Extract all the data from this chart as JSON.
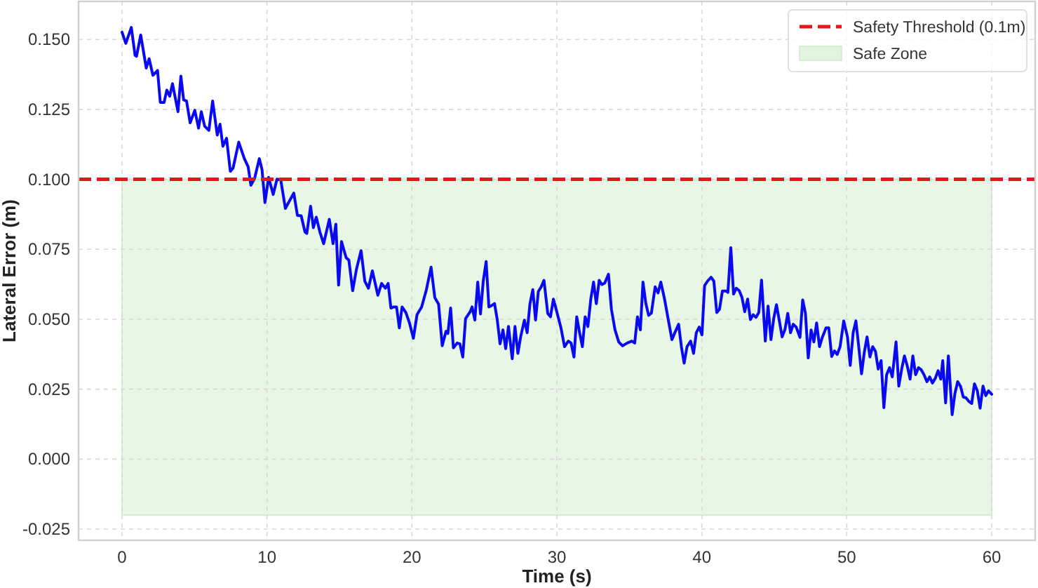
{
  "chart_data": {
    "type": "line",
    "xlabel": "Time (s)",
    "ylabel": "Lateral Error (m)",
    "xlim": [
      -3,
      63
    ],
    "ylim": [
      -0.029,
      0.1636
    ],
    "xticks": [
      0,
      10,
      20,
      30,
      40,
      50,
      60
    ],
    "yticks": [
      {
        "value": -0.025,
        "label": "-0.025"
      },
      {
        "value": 0,
        "label": "0.000"
      },
      {
        "value": 0.025,
        "label": "0.025"
      },
      {
        "value": 0.05,
        "label": "0.050"
      },
      {
        "value": 0.075,
        "label": "0.075"
      },
      {
        "value": 0.1,
        "label": "0.100"
      },
      {
        "value": 0.125,
        "label": "0.125"
      },
      {
        "value": 0.15,
        "label": "0.150"
      }
    ],
    "grid": true,
    "legend": "top right",
    "marker": "none",
    "line_style": "solid",
    "ref_lines": [
      {
        "axis": "y",
        "value": 0.1,
        "label": "Safety Threshold (0.1m)",
        "color": "#e8151b",
        "line_style": "dashed"
      }
    ],
    "bands": [
      {
        "axis": "y",
        "from": -0.02,
        "to": 0.1,
        "label": "Safe Zone",
        "color": "#d4efd0"
      }
    ],
    "series": [
      {
        "color": "#0a0af0",
        "x": [
          0,
          0.26,
          0.64,
          0.9,
          1.0,
          1.29,
          1.67,
          1.87,
          2.13,
          2.45,
          2.64,
          2.9,
          3.09,
          3.29,
          3.48,
          3.86,
          4.06,
          4.25,
          4.45,
          4.7,
          5.02,
          5.28,
          5.47,
          5.7,
          5.99,
          6.25,
          6.57,
          6.76,
          6.96,
          7.21,
          7.47,
          7.66,
          8.05,
          8.44,
          8.7,
          8.89,
          9.15,
          9.47,
          9.66,
          9.86,
          10.11,
          10.43,
          10.69,
          10.95,
          11.27,
          11.85,
          12.1,
          12.36,
          12.62,
          12.75,
          13.01,
          13.2,
          13.4,
          13.65,
          13.91,
          14.3,
          14.56,
          14.75,
          14.94,
          15.14,
          15.46,
          15.65,
          15.91,
          16.17,
          16.49,
          16.75,
          17.0,
          17.27,
          17.65,
          17.91,
          18.17,
          18.36,
          18.55,
          18.74,
          18.94,
          19.13,
          19.32,
          19.58,
          19.83,
          20.1,
          20.35,
          20.67,
          21.0,
          21.32,
          21.58,
          21.84,
          22.09,
          22.35,
          22.48,
          22.67,
          22.86,
          23.12,
          23.31,
          23.51,
          23.7,
          24.02,
          24.15,
          24.34,
          24.54,
          24.73,
          24.92,
          25.12,
          25.31,
          25.5,
          25.7,
          25.89,
          26.08,
          26.28,
          26.47,
          26.66,
          26.92,
          27.11,
          27.31,
          27.5,
          27.76,
          27.95,
          28.14,
          28.34,
          28.53,
          28.72,
          28.92,
          29.11,
          29.37,
          29.56,
          29.76,
          30.01,
          30.27,
          30.53,
          30.79,
          30.98,
          31.18,
          31.37,
          31.56,
          31.76,
          31.95,
          32.14,
          32.34,
          32.53,
          32.72,
          32.92,
          33.11,
          33.3,
          33.56,
          33.76,
          34.01,
          34.27,
          34.53,
          34.85,
          35.17,
          35.37,
          35.56,
          35.76,
          35.94,
          36.14,
          36.33,
          36.52,
          36.78,
          36.98,
          37.17,
          37.43,
          37.69,
          37.94,
          38.14,
          38.4,
          38.59,
          38.78,
          38.98,
          39.23,
          39.43,
          39.62,
          39.82,
          40.01,
          40.19,
          40.39,
          40.64,
          40.83,
          41.03,
          41.22,
          41.42,
          41.67,
          41.8,
          42.0,
          42.19,
          42.38,
          42.58,
          42.77,
          42.96,
          43.16,
          43.35,
          43.54,
          43.74,
          43.93,
          44.12,
          44.38,
          44.57,
          44.77,
          44.96,
          45.15,
          45.35,
          45.54,
          45.74,
          45.93,
          46.12,
          46.31,
          46.51,
          46.77,
          46.96,
          47.15,
          47.34,
          47.54,
          47.73,
          47.92,
          48.12,
          48.31,
          48.57,
          48.76,
          48.96,
          49.15,
          49.34,
          49.54,
          49.79,
          50.05,
          50.24,
          50.44,
          50.63,
          50.82,
          51.02,
          51.21,
          51.4,
          51.6,
          51.79,
          51.98,
          52.17,
          52.37,
          52.56,
          52.75,
          52.95,
          53.14,
          53.4,
          53.59,
          53.79,
          53.98,
          54.17,
          54.37,
          54.56,
          54.75,
          54.95,
          55.14,
          55.33,
          55.53,
          55.72,
          55.91,
          56.11,
          56.3,
          56.49,
          56.62,
          56.82,
          57.01,
          57.27,
          57.46,
          57.65,
          57.85,
          58.04,
          58.23,
          58.43,
          58.62,
          58.81,
          59.01,
          59.2,
          59.4,
          59.59,
          59.78,
          60.0
        ],
        "values": [
          0.1526,
          0.1486,
          0.1543,
          0.1443,
          0.144,
          0.1516,
          0.1398,
          0.1431,
          0.1372,
          0.1389,
          0.1275,
          0.1275,
          0.1319,
          0.1297,
          0.1342,
          0.1242,
          0.1369,
          0.1284,
          0.128,
          0.1202,
          0.1247,
          0.1183,
          0.1242,
          0.119,
          0.1175,
          0.128,
          0.1158,
          0.1197,
          0.1118,
          0.1147,
          0.1029,
          0.104,
          0.1133,
          0.1074,
          0.1045,
          0.0979,
          0.1004,
          0.1074,
          0.1034,
          0.0917,
          0.1007,
          0.0946,
          0.1001,
          0.0998,
          0.0896,
          0.0951,
          0.0871,
          0.087,
          0.0812,
          0.0807,
          0.0904,
          0.0827,
          0.0865,
          0.0812,
          0.077,
          0.0857,
          0.077,
          0.084,
          0.0622,
          0.0778,
          0.072,
          0.0711,
          0.0602,
          0.0678,
          0.0745,
          0.0636,
          0.0611,
          0.0673,
          0.0586,
          0.0628,
          0.0611,
          0.0628,
          0.054,
          0.0544,
          0.0544,
          0.0469,
          0.0544,
          0.0524,
          0.0487,
          0.0432,
          0.0516,
          0.0544,
          0.0606,
          0.0686,
          0.0577,
          0.0554,
          0.0405,
          0.0457,
          0.0449,
          0.054,
          0.0398,
          0.0415,
          0.0412,
          0.0365,
          0.0502,
          0.0527,
          0.0544,
          0.0497,
          0.0633,
          0.0519,
          0.0636,
          0.0706,
          0.0544,
          0.0549,
          0.0556,
          0.0497,
          0.0412,
          0.0462,
          0.0395,
          0.0474,
          0.0359,
          0.0474,
          0.0378,
          0.0437,
          0.0497,
          0.0452,
          0.0554,
          0.0606,
          0.0497,
          0.0599,
          0.0616,
          0.0639,
          0.0521,
          0.0509,
          0.0572,
          0.0524,
          0.0472,
          0.0402,
          0.0422,
          0.0415,
          0.0365,
          0.0509,
          0.0454,
          0.0402,
          0.0509,
          0.0474,
          0.0572,
          0.0633,
          0.0556,
          0.0639,
          0.0624,
          0.0629,
          0.0661,
          0.0537,
          0.0462,
          0.0419,
          0.0405,
          0.0415,
          0.0422,
          0.0415,
          0.0509,
          0.0462,
          0.0633,
          0.0556,
          0.0514,
          0.0522,
          0.0616,
          0.0594,
          0.0633,
          0.0572,
          0.0497,
          0.0427,
          0.0452,
          0.0482,
          0.0402,
          0.0343,
          0.0402,
          0.0422,
          0.0378,
          0.0452,
          0.0472,
          0.0444,
          0.062,
          0.0636,
          0.065,
          0.0636,
          0.0524,
          0.0536,
          0.0601,
          0.0601,
          0.0596,
          0.0756,
          0.059,
          0.0611,
          0.0602,
          0.0578,
          0.0527,
          0.0572,
          0.0499,
          0.0516,
          0.0507,
          0.0524,
          0.064,
          0.0422,
          0.0547,
          0.0427,
          0.0502,
          0.0552,
          0.0494,
          0.0437,
          0.0464,
          0.0521,
          0.0452,
          0.0482,
          0.0472,
          0.0435,
          0.0569,
          0.0521,
          0.0362,
          0.0462,
          0.0419,
          0.0487,
          0.0402,
          0.0435,
          0.0469,
          0.0469,
          0.0367,
          0.0387,
          0.0374,
          0.0402,
          0.0494,
          0.0437,
          0.0335,
          0.0452,
          0.0494,
          0.0405,
          0.0305,
          0.0382,
          0.0437,
          0.0365,
          0.0402,
          0.0385,
          0.0322,
          0.0352,
          0.0184,
          0.0302,
          0.0327,
          0.0294,
          0.0419,
          0.0261,
          0.0322,
          0.0369,
          0.0334,
          0.0286,
          0.0369,
          0.0302,
          0.0327,
          0.0319,
          0.0302,
          0.0277,
          0.0294,
          0.0272,
          0.0289,
          0.0316,
          0.0286,
          0.0352,
          0.0201,
          0.0369,
          0.0159,
          0.0234,
          0.0277,
          0.026,
          0.0222,
          0.0219,
          0.0206,
          0.0199,
          0.0269,
          0.0244,
          0.0182,
          0.0261,
          0.0227,
          0.0244,
          0.0232
        ]
      }
    ]
  }
}
